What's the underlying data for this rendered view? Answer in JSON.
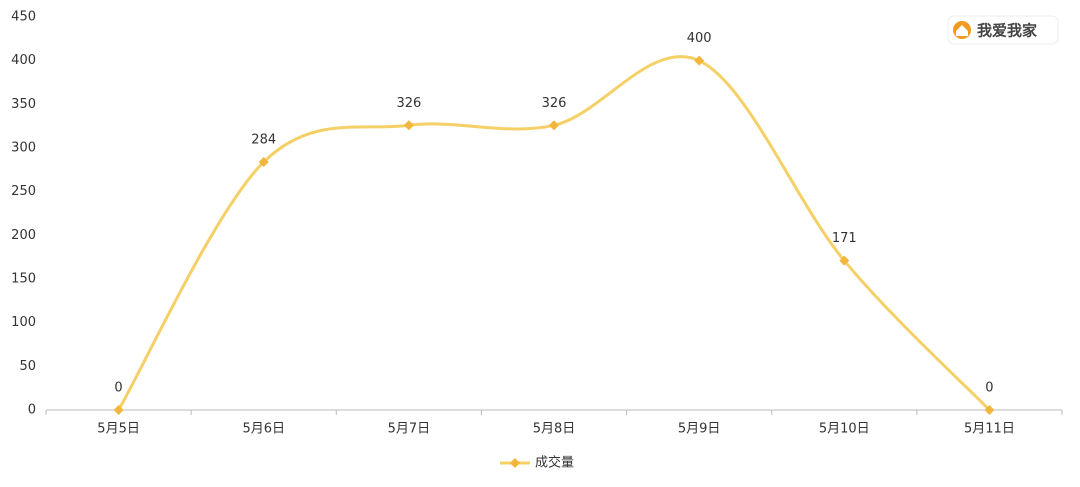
{
  "chart_data": {
    "type": "line",
    "watermark": "我爱我家",
    "categories": [
      "5月5日",
      "5月6日",
      "5月7日",
      "5月8日",
      "5月9日",
      "5月10日",
      "5月11日"
    ],
    "series": [
      {
        "name": "成交量",
        "color": "#f5d066",
        "marker_color": "#f2b63c",
        "values": [
          0,
          284,
          326,
          326,
          400,
          171,
          0
        ]
      }
    ],
    "ylim": [
      0,
      450
    ],
    "yticks": [
      0,
      50,
      100,
      150,
      200,
      250,
      300,
      350,
      400,
      450
    ],
    "grid": false,
    "legend": "bottom",
    "smooth": true
  }
}
